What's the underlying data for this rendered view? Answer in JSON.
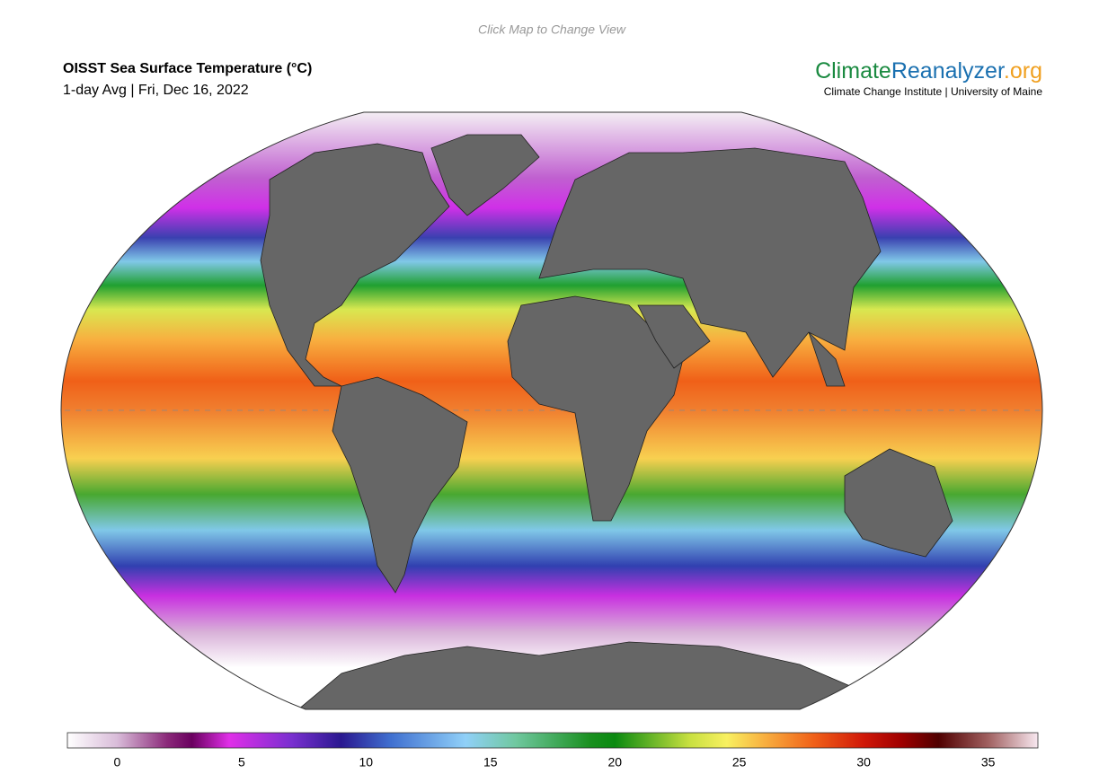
{
  "header": {
    "hint": "Click Map to Change View",
    "title": "OISST Sea Surface Temperature (°C)",
    "subtitle": "1-day Avg | Fri, Dec 16, 2022",
    "brand": {
      "part1": "Climate",
      "part2": "Reanalyzer",
      "part3": ".org"
    },
    "affiliation": "Climate Change Institute | University of Maine"
  },
  "colorbar": {
    "range": [
      -2,
      37
    ],
    "ticks": [
      0,
      5,
      10,
      15,
      20,
      25,
      30,
      35
    ],
    "color_stops": [
      {
        "value": -2,
        "color": "#ffffff"
      },
      {
        "value": 0,
        "color": "#d9bcd9"
      },
      {
        "value": 2,
        "color": "#8b2a7a"
      },
      {
        "value": 3,
        "color": "#6a005f"
      },
      {
        "value": 4.5,
        "color": "#e030e8"
      },
      {
        "value": 7,
        "color": "#7a30d0"
      },
      {
        "value": 9,
        "color": "#2a1890"
      },
      {
        "value": 11,
        "color": "#4070d0"
      },
      {
        "value": 14,
        "color": "#90d0f8"
      },
      {
        "value": 16,
        "color": "#70c8a0"
      },
      {
        "value": 19,
        "color": "#1a9020"
      },
      {
        "value": 20,
        "color": "#0a8a10"
      },
      {
        "value": 23,
        "color": "#c8e040"
      },
      {
        "value": 24.5,
        "color": "#f8f060"
      },
      {
        "value": 26,
        "color": "#f8b040"
      },
      {
        "value": 28,
        "color": "#f06018"
      },
      {
        "value": 30,
        "color": "#d01808"
      },
      {
        "value": 31.5,
        "color": "#a00000"
      },
      {
        "value": 33,
        "color": "#500000"
      },
      {
        "value": 35,
        "color": "#a06060"
      },
      {
        "value": 37,
        "color": "#f8e8f0"
      }
    ]
  }
}
